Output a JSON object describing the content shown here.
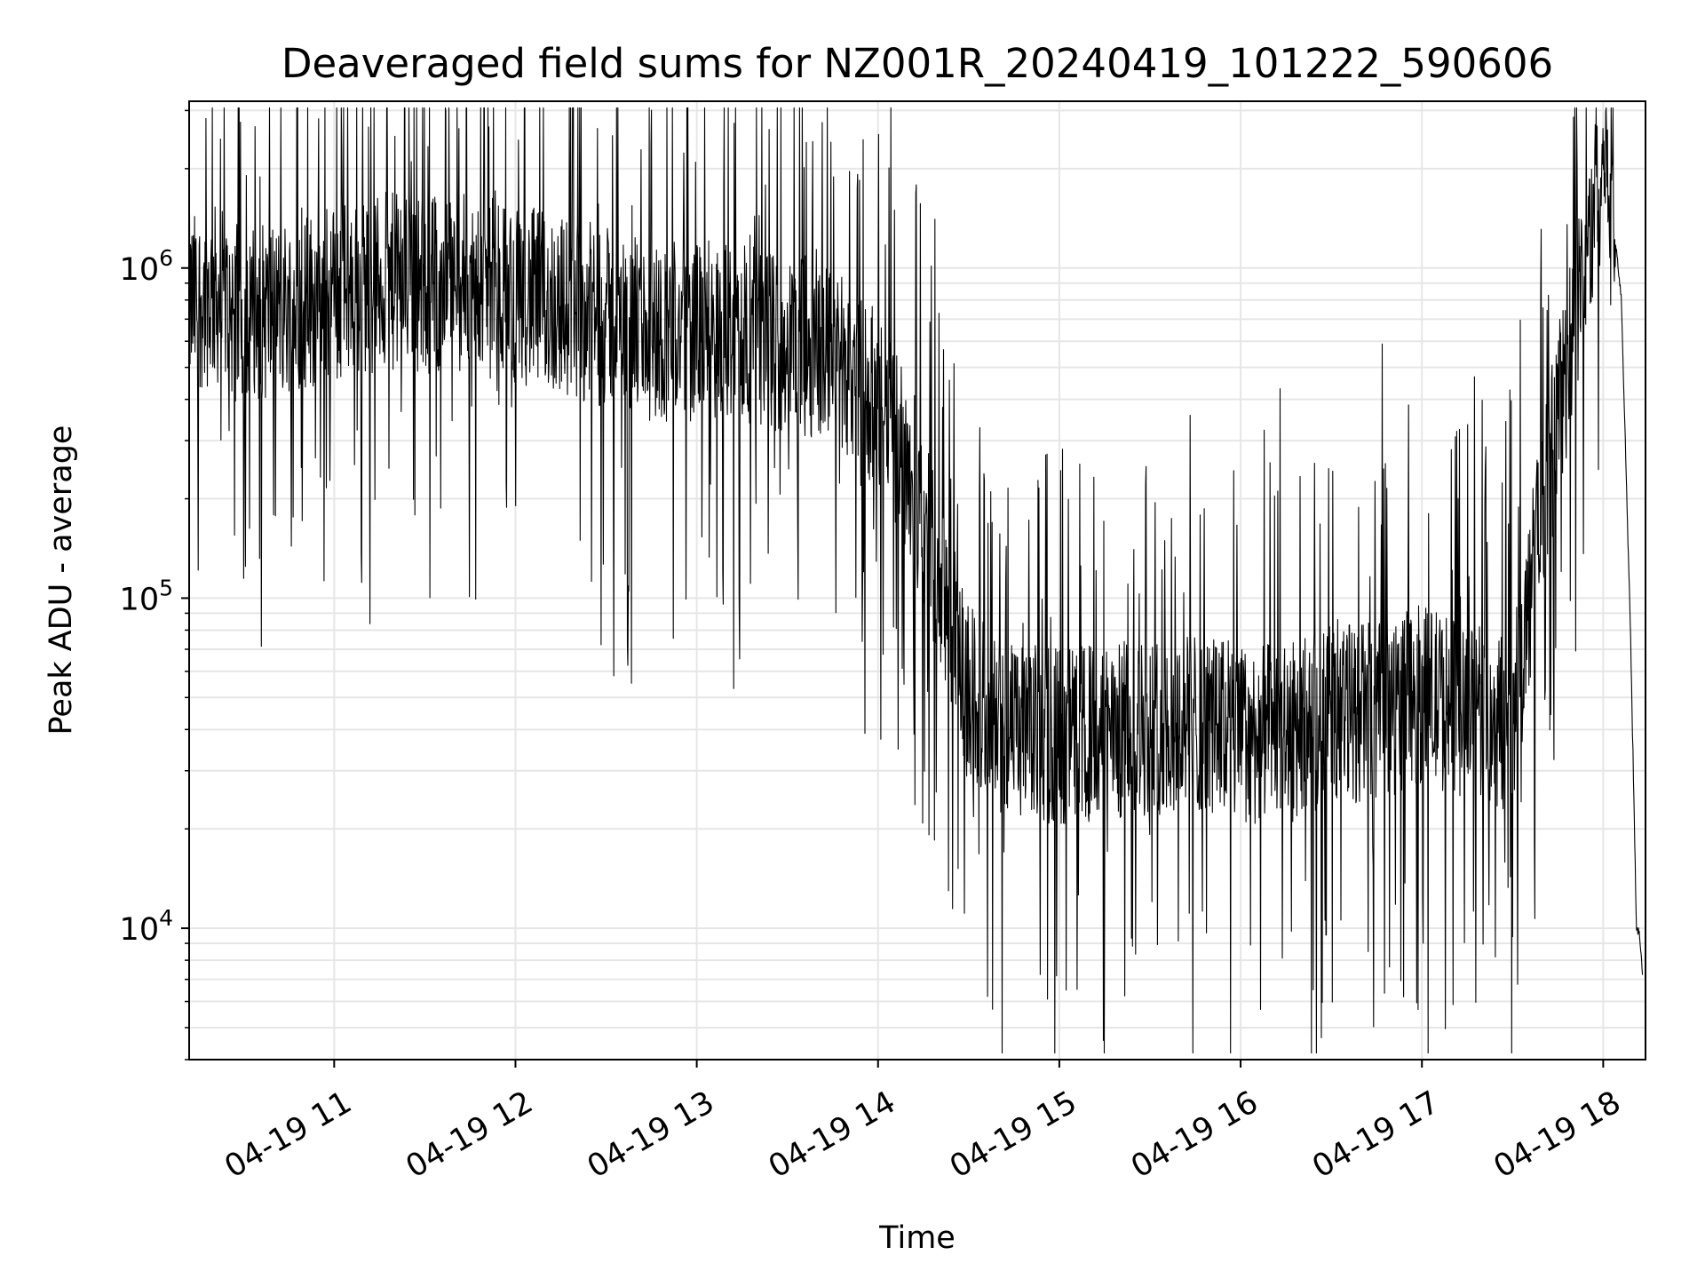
{
  "chart_data": {
    "type": "line",
    "title": "Deaveraged field sums for NZ001R_20240419_101222_590606",
    "xlabel": "Time",
    "ylabel": "Peak ADU - average",
    "yscale": "log",
    "ylim": [
      4000,
      3200000
    ],
    "xlim": [
      "2024-04-19 10:12",
      "2024-04-19 18:14"
    ],
    "x_ticks": [
      {
        "value": "2024-04-19 11:00",
        "label": "04-19 11"
      },
      {
        "value": "2024-04-19 12:00",
        "label": "04-19 12"
      },
      {
        "value": "2024-04-19 13:00",
        "label": "04-19 13"
      },
      {
        "value": "2024-04-19 14:00",
        "label": "04-19 14"
      },
      {
        "value": "2024-04-19 15:00",
        "label": "04-19 15"
      },
      {
        "value": "2024-04-19 16:00",
        "label": "04-19 16"
      },
      {
        "value": "2024-04-19 17:00",
        "label": "04-19 17"
      },
      {
        "value": "2024-04-19 18:00",
        "label": "04-19 18"
      }
    ],
    "y_ticks": [
      {
        "value": 10000,
        "base": "10",
        "exp": "4"
      },
      {
        "value": 100000,
        "base": "10",
        "exp": "5"
      },
      {
        "value": 1000000,
        "base": "10",
        "exp": "6"
      }
    ],
    "grid": true,
    "series": [
      {
        "color": "#000000",
        "x": [
          "2024-04-19 10:12",
          "2024-04-19 10:20",
          "2024-04-19 10:30",
          "2024-04-19 10:45",
          "2024-04-19 11:00",
          "2024-04-19 11:15",
          "2024-04-19 11:30",
          "2024-04-19 11:45",
          "2024-04-19 12:00",
          "2024-04-19 12:15",
          "2024-04-19 12:30",
          "2024-04-19 12:45",
          "2024-04-19 13:00",
          "2024-04-19 13:15",
          "2024-04-19 13:30",
          "2024-04-19 13:45",
          "2024-04-19 14:00",
          "2024-04-19 14:10",
          "2024-04-19 14:20",
          "2024-04-19 14:30",
          "2024-04-19 14:45",
          "2024-04-19 15:00",
          "2024-04-19 15:15",
          "2024-04-19 15:30",
          "2024-04-19 15:45",
          "2024-04-19 16:00",
          "2024-04-19 16:15",
          "2024-04-19 16:30",
          "2024-04-19 16:45",
          "2024-04-19 17:00",
          "2024-04-19 17:15",
          "2024-04-19 17:30",
          "2024-04-19 17:40",
          "2024-04-19 17:50",
          "2024-04-19 17:55",
          "2024-04-19 18:00",
          "2024-04-19 18:03",
          "2024-04-19 18:06",
          "2024-04-19 18:09",
          "2024-04-19 18:11",
          "2024-04-19 18:12",
          "2024-04-19 18:13"
        ],
        "y": [
          600000,
          650000,
          550000,
          600000,
          650000,
          700000,
          700000,
          700000,
          650000,
          600000,
          550000,
          500000,
          500000,
          500000,
          450000,
          450000,
          300000,
          200000,
          90000,
          40000,
          30000,
          30000,
          30000,
          32000,
          33000,
          30000,
          30000,
          35000,
          35000,
          40000,
          35000,
          32000,
          150000,
          500000,
          900000,
          1700000,
          1500000,
          800000,
          80000,
          10000,
          9500,
          7000
        ]
      }
    ]
  }
}
